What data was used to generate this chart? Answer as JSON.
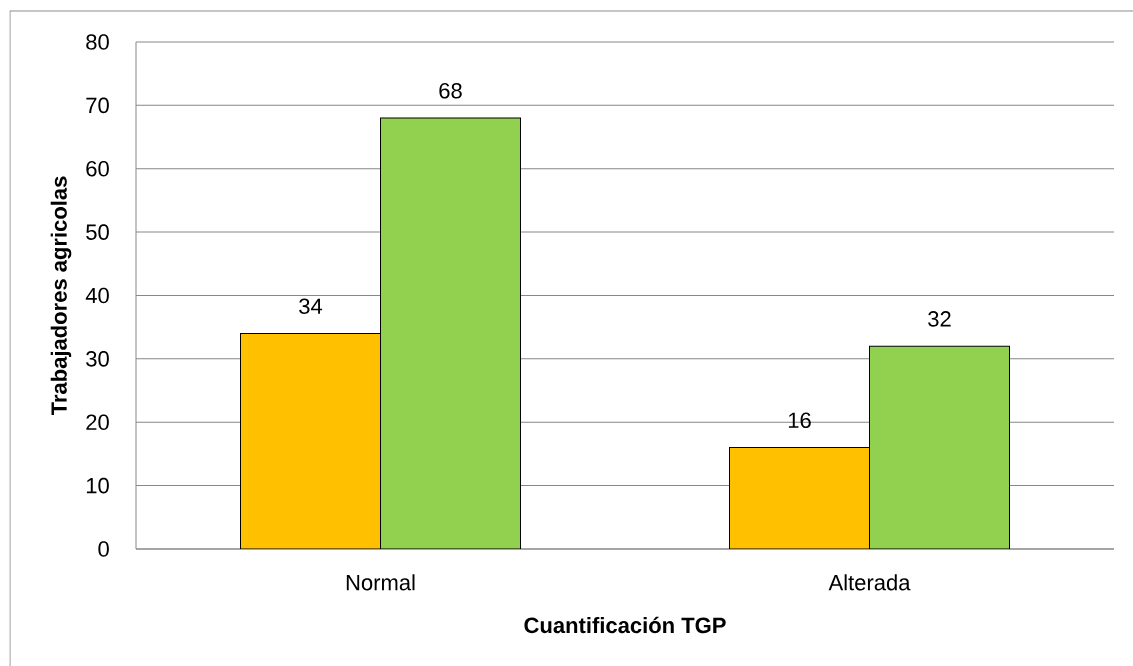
{
  "chart_data": {
    "type": "bar",
    "xlabel": "Cuantificación TGP",
    "ylabel": "Trabajadores agricolas",
    "categories": [
      "Normal",
      "Alterada"
    ],
    "series": [
      {
        "color": "#ffc000",
        "values": [
          34,
          16
        ]
      },
      {
        "color": "#92d050",
        "values": [
          68,
          32
        ]
      }
    ],
    "ylim": [
      0,
      80
    ],
    "yticks": [
      0,
      10,
      20,
      30,
      40,
      50,
      60,
      70,
      80
    ],
    "grid": "y",
    "data_labels": true
  }
}
